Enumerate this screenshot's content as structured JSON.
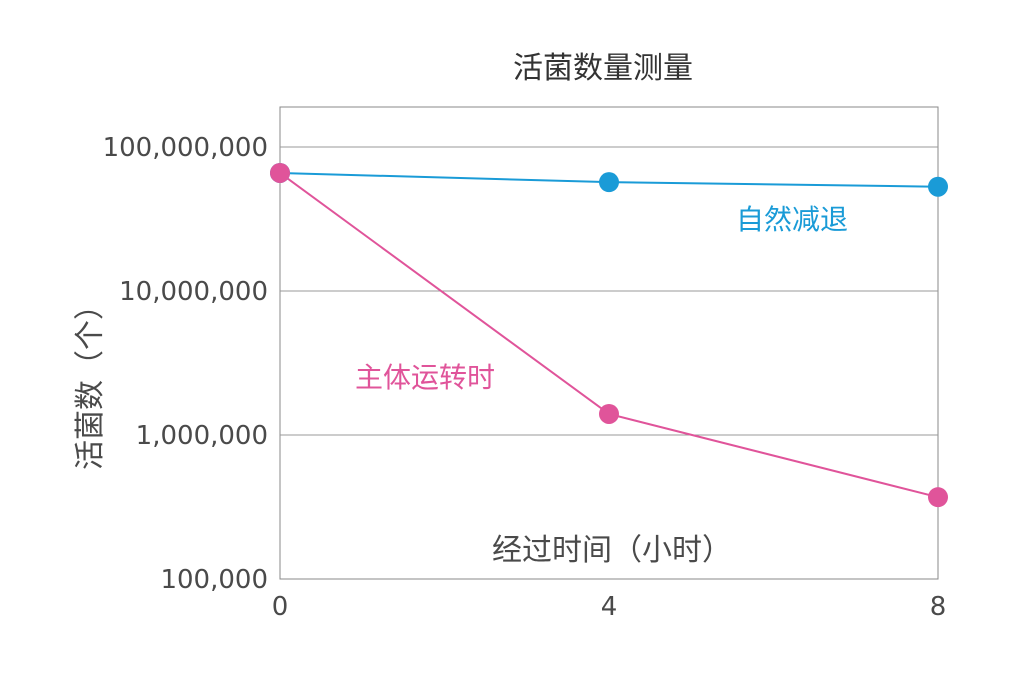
{
  "chart_data": {
    "type": "line",
    "title": "活菌数量测量",
    "xlabel": "经过时间（小时）",
    "ylabel": "活菌数（个）",
    "x": [
      0,
      4,
      8
    ],
    "x_ticks": [
      "0",
      "4",
      "8"
    ],
    "xlim": [
      0,
      8
    ],
    "y_scale": "log",
    "ylim": [
      100000,
      100000000
    ],
    "y_ticks": [
      {
        "value": 100000,
        "label": "100,000"
      },
      {
        "value": 1000000,
        "label": "1,000,000"
      },
      {
        "value": 10000000,
        "label": "10,000,000"
      },
      {
        "value": 100000000,
        "label": "100,000,000"
      }
    ],
    "grid": "horizontal",
    "series": [
      {
        "name": "自然减退",
        "values": [
          66000000,
          57000000,
          53000000
        ],
        "color": "#1a9bd7"
      },
      {
        "name": "主体运转时",
        "values": [
          66000000,
          1400000,
          370000
        ],
        "color": "#e0549a"
      }
    ]
  }
}
